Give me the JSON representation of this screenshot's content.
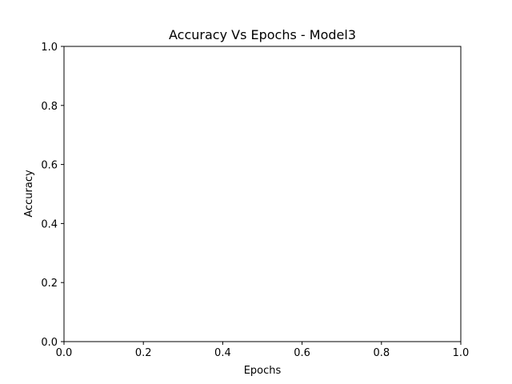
{
  "chart_data": {
    "type": "line",
    "title": "Accuracy Vs  Epochs - Model3",
    "xlabel": "Epochs",
    "ylabel": "Accuracy",
    "xlim": [
      0.0,
      1.0
    ],
    "ylim": [
      0.0,
      1.0
    ],
    "xticks": [
      "0.0",
      "0.2",
      "0.4",
      "0.6",
      "0.8",
      "1.0"
    ],
    "yticks": [
      "0.0",
      "0.2",
      "0.4",
      "0.6",
      "0.8",
      "1.0"
    ],
    "grid": false,
    "series": []
  }
}
